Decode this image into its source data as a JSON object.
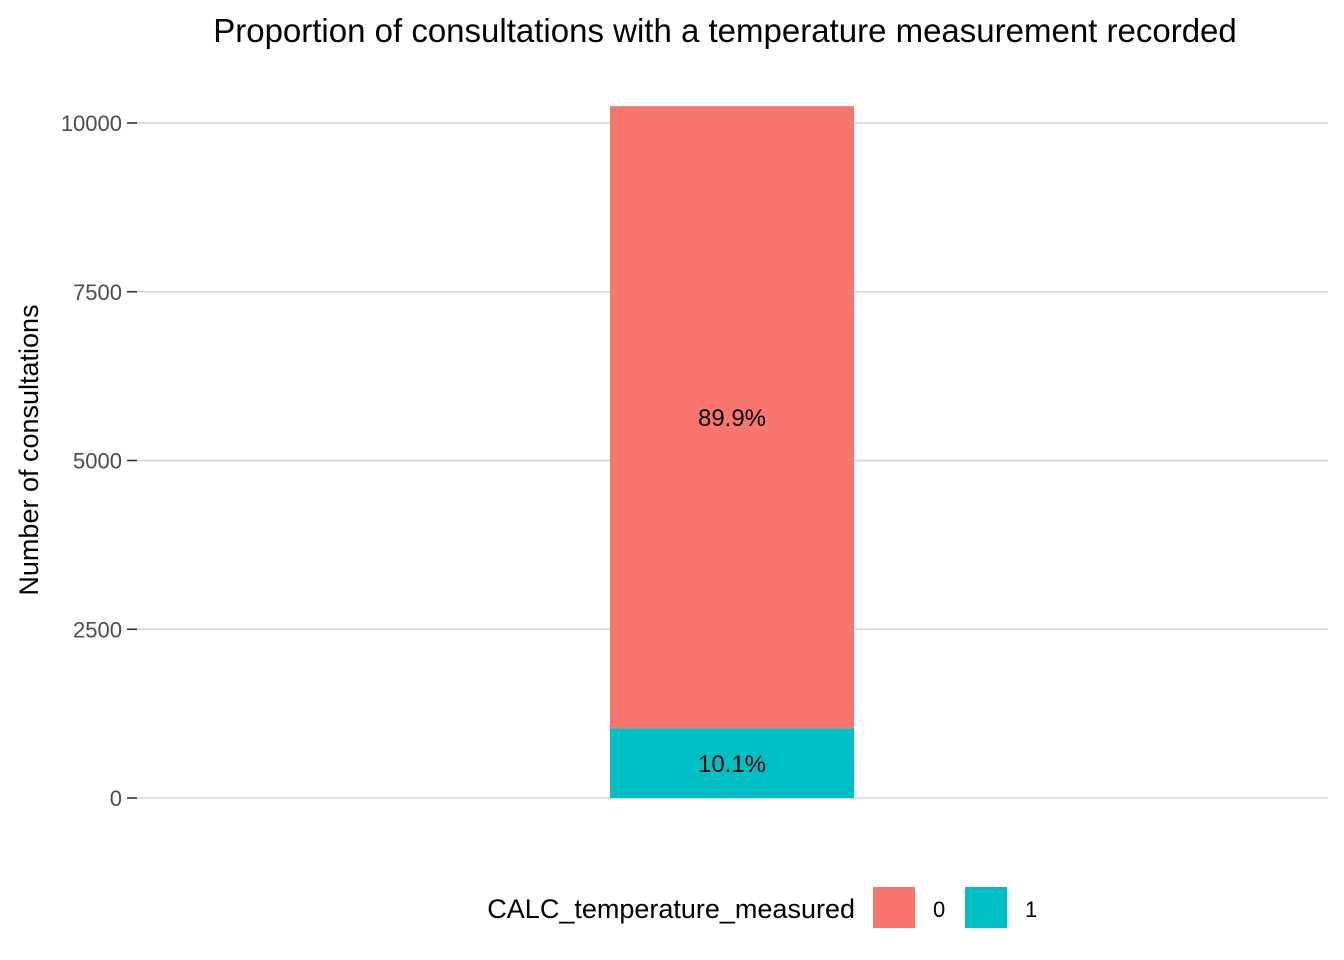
{
  "chart_data": {
    "type": "bar",
    "stacked": true,
    "title": "Proportion of consultations with a temperature measurement recorded",
    "xlabel": "",
    "ylabel": "Number of consultations",
    "ylim": [
      0,
      10300
    ],
    "y_ticks": [
      0,
      2500,
      5000,
      7500,
      10000
    ],
    "y_tick_labels": [
      "0",
      "2500",
      "5000",
      "7500",
      "10000"
    ],
    "grid": "horizontal",
    "legend": {
      "title": "CALC_temperature_measured",
      "position": "bottom"
    },
    "categories": [
      ""
    ],
    "series": [
      {
        "name": "1",
        "values": [
          1035
        ],
        "label": "10.1%",
        "color": "#00BFC4"
      },
      {
        "name": "0",
        "values": [
          9215
        ],
        "label": "89.9%",
        "color": "#F8766D"
      }
    ],
    "legend_order": [
      "0",
      "1"
    ]
  }
}
